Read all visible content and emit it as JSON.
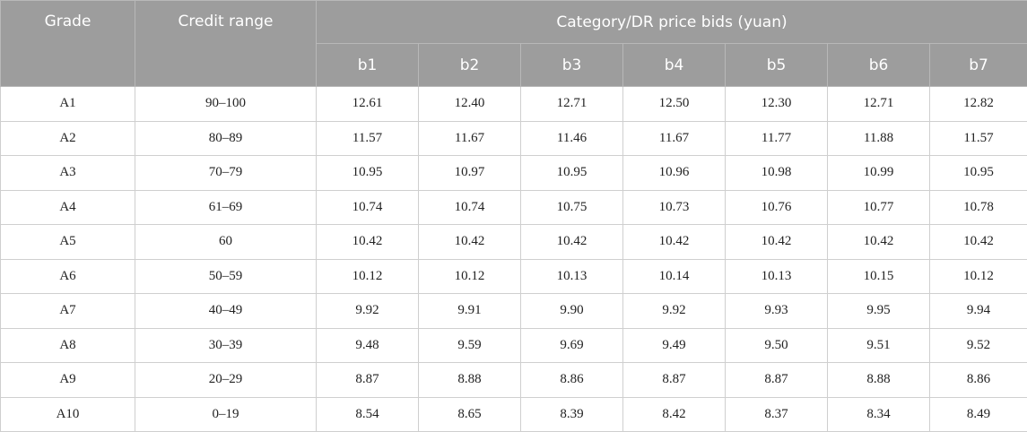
{
  "table": {
    "header": {
      "grade": "Grade",
      "credit_range": "Credit range",
      "group": "Category/DR price bids (yuan)",
      "columns": [
        "b1",
        "b2",
        "b3",
        "b4",
        "b5",
        "b6",
        "b7"
      ]
    },
    "rows": [
      [
        "A1",
        "90–100",
        "12.61",
        "12.40",
        "12.71",
        "12.50",
        "12.30",
        "12.71",
        "12.82"
      ],
      [
        "A2",
        "80–89",
        "11.57",
        "11.67",
        "11.46",
        "11.67",
        "11.77",
        "11.88",
        "11.57"
      ],
      [
        "A3",
        "70–79",
        "10.95",
        "10.97",
        "10.95",
        "10.96",
        "10.98",
        "10.99",
        "10.95"
      ],
      [
        "A4",
        "61–69",
        "10.74",
        "10.74",
        "10.75",
        "10.73",
        "10.76",
        "10.77",
        "10.78"
      ],
      [
        "A5",
        "60",
        "10.42",
        "10.42",
        "10.42",
        "10.42",
        "10.42",
        "10.42",
        "10.42"
      ],
      [
        "A6",
        "50–59",
        "10.12",
        "10.12",
        "10.13",
        "10.14",
        "10.13",
        "10.15",
        "10.12"
      ],
      [
        "A7",
        "40–49",
        "9.92",
        "9.91",
        "9.90",
        "9.92",
        "9.93",
        "9.95",
        "9.94"
      ],
      [
        "A8",
        "30–39",
        "9.48",
        "9.59",
        "9.69",
        "9.49",
        "9.50",
        "9.51",
        "9.52"
      ],
      [
        "A9",
        "20–29",
        "8.87",
        "8.88",
        "8.86",
        "8.87",
        "8.87",
        "8.88",
        "8.86"
      ],
      [
        "A10",
        "0–19",
        "8.54",
        "8.65",
        "8.39",
        "8.42",
        "8.37",
        "8.34",
        "8.49"
      ]
    ]
  }
}
